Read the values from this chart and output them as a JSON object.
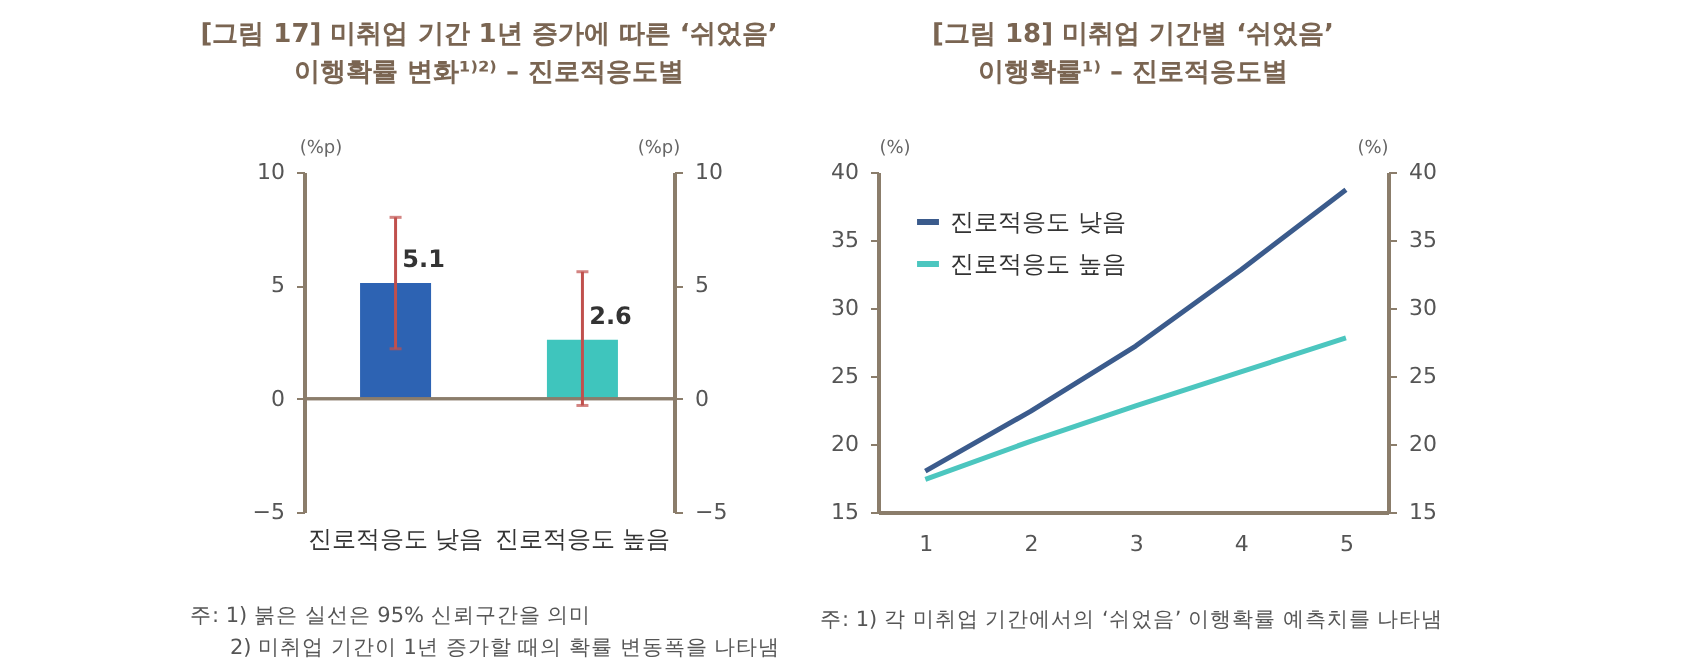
{
  "chart_data": [
    {
      "type": "bar",
      "title": "[그림 17] 미취업 기간 1년 증가에 따른 ‘쉬었음’\n이행확률 변화¹⁾²⁾ – 진로적응도별",
      "ylabel": "(%p)",
      "y2label": "(%p)",
      "categories": [
        "진로적응도 낮음",
        "진로적응도 높음"
      ],
      "values": [
        5.1,
        2.6
      ],
      "colors": [
        "#2d63b3",
        "#3fc5bd"
      ],
      "errors": [
        [
          2.2,
          8.0
        ],
        [
          -0.3,
          5.6
        ]
      ],
      "ylim": [
        -5,
        10
      ],
      "yticks": [
        {
          "value": -5,
          "label": "−5"
        },
        0,
        5,
        10
      ],
      "y2lim": [
        -5,
        10
      ],
      "y2ticks": [
        {
          "value": -5,
          "label": "−5"
        },
        0,
        5,
        10
      ],
      "data_labels": true,
      "annotations": [
        "주: 1) 붉은 실선은 95% 신뢰구간을 의미",
        "2) 미취업 기간이 1년 증가할 때의 확률 변동폭을 나타냄"
      ]
    },
    {
      "type": "line",
      "title": "[그림 18] 미취업 기간별 ‘쉬었음’\n이행확률¹⁾ – 진로적응도별",
      "ylabel": "(%)",
      "y2label": "(%)",
      "x": [
        1,
        2,
        3,
        4,
        5
      ],
      "xlim": [
        0.55,
        5.4
      ],
      "xticks": [
        1,
        2,
        3,
        4,
        5
      ],
      "series": [
        {
          "name": "진로적응도 낮음",
          "color": "#3b5b8c",
          "values": [
            18.0,
            22.4,
            27.2,
            32.8,
            38.7
          ]
        },
        {
          "name": "진로적응도 높음",
          "color": "#4cc6bf",
          "values": [
            17.4,
            20.2,
            22.8,
            25.3,
            27.8
          ]
        }
      ],
      "ylim": [
        15,
        40
      ],
      "yticks": [
        15,
        20,
        25,
        30,
        35,
        40
      ],
      "y2lim": [
        15,
        40
      ],
      "y2ticks": [
        15,
        20,
        25,
        30,
        35,
        40
      ],
      "legend": "top left",
      "annotations": [
        "주: 1) 각 미취업 기간에서의 ‘쉬었음’ 이행확률 예측치를 나타냄"
      ]
    }
  ]
}
